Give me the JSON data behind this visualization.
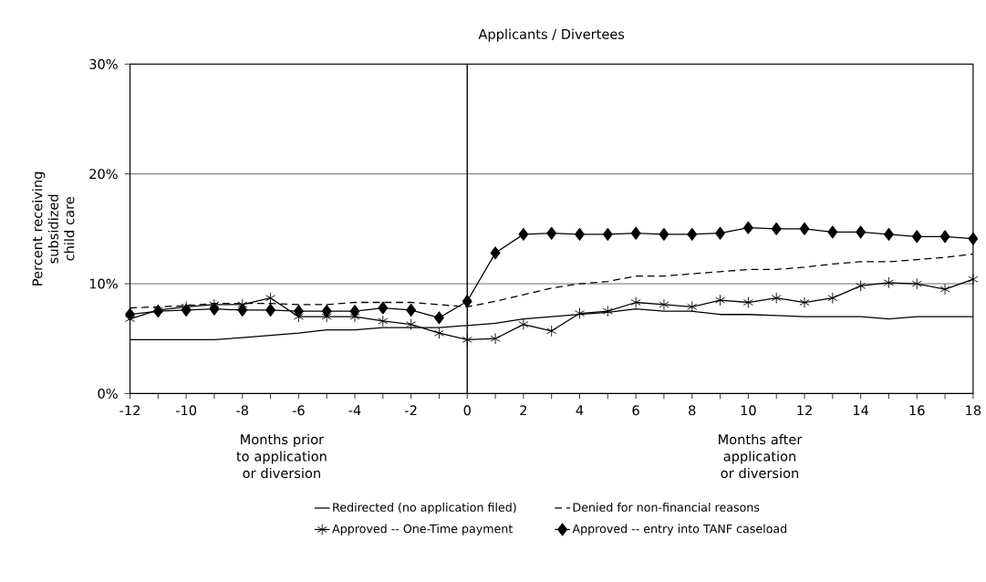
{
  "chart_data": {
    "type": "line",
    "title": "Applicants / Divertees",
    "xlabel": null,
    "ylabel": "Percent receiving subsidized child care",
    "x": [
      -12,
      -11,
      -10,
      -9,
      -8,
      -7,
      -6,
      -5,
      -4,
      -3,
      -2,
      -1,
      0,
      1,
      2,
      3,
      4,
      5,
      6,
      7,
      8,
      9,
      10,
      11,
      12,
      13,
      14,
      15,
      16,
      17,
      18
    ],
    "series": [
      {
        "name": "Redirected (no application filed)",
        "color": "#000000",
        "marker": "none",
        "line_style": "solid",
        "values": [
          4.9,
          4.9,
          4.9,
          4.9,
          5.1,
          5.3,
          5.5,
          5.8,
          5.8,
          6.0,
          6.0,
          6.0,
          6.2,
          6.4,
          6.8,
          7.0,
          7.2,
          7.4,
          7.7,
          7.5,
          7.5,
          7.2,
          7.2,
          7.1,
          7.0,
          7.0,
          7.0,
          6.8,
          7.0,
          7.0,
          7.0
        ]
      },
      {
        "name": "Denied for non-financial reasons",
        "color": "#000000",
        "marker": "none",
        "line_style": "dashed",
        "values": [
          7.8,
          7.9,
          8.0,
          8.2,
          8.2,
          8.2,
          8.1,
          8.1,
          8.3,
          8.3,
          8.3,
          8.1,
          7.9,
          8.4,
          9.0,
          9.6,
          10.0,
          10.2,
          10.7,
          10.7,
          10.9,
          11.1,
          11.3,
          11.3,
          11.5,
          11.8,
          12.0,
          12.0,
          12.2,
          12.4,
          12.7
        ]
      },
      {
        "name": "Approved -- One-Time payment",
        "color": "#000000",
        "marker": "cross",
        "line_style": "solid",
        "values": [
          6.8,
          7.6,
          7.9,
          8.1,
          8.1,
          8.7,
          7.0,
          7.0,
          7.0,
          6.6,
          6.3,
          5.5,
          4.9,
          5.0,
          6.3,
          5.7,
          7.3,
          7.5,
          8.3,
          8.1,
          7.9,
          8.5,
          8.3,
          8.7,
          8.3,
          8.7,
          9.8,
          10.1,
          10.0,
          9.5,
          10.4
        ]
      },
      {
        "name": "Approved -- entry into TANF caseload",
        "color": "#000000",
        "marker": "diamond",
        "line_style": "solid",
        "values": [
          7.2,
          7.5,
          7.6,
          7.7,
          7.6,
          7.6,
          7.5,
          7.5,
          7.5,
          7.8,
          7.6,
          6.9,
          8.4,
          12.8,
          14.5,
          14.6,
          14.5,
          14.5,
          14.6,
          14.5,
          14.5,
          14.6,
          15.1,
          15.0,
          15.0,
          14.7,
          14.7,
          14.5,
          14.3,
          14.3,
          14.1
        ]
      }
    ],
    "xlim": [
      -12,
      18
    ],
    "xticks": [
      -12,
      {
        "value": -11,
        "label": null
      },
      -10,
      {
        "value": -9,
        "label": null
      },
      -8,
      {
        "value": -7,
        "label": null
      },
      -6,
      {
        "value": -5,
        "label": null
      },
      -4,
      {
        "value": -3,
        "label": null
      },
      -2,
      {
        "value": -1,
        "label": null
      },
      0,
      {
        "value": 1,
        "label": null
      },
      2,
      {
        "value": 3,
        "label": null
      },
      4,
      {
        "value": 5,
        "label": null
      },
      6,
      {
        "value": 7,
        "label": null
      },
      8,
      {
        "value": 9,
        "label": null
      },
      10,
      {
        "value": 11,
        "label": null
      },
      12,
      {
        "value": 13,
        "label": null
      },
      14,
      {
        "value": 15,
        "label": null
      },
      16,
      {
        "value": 17,
        "label": null
      },
      18
    ],
    "ylim": [
      0,
      30
    ],
    "yticks": [
      {
        "value": 0,
        "label": "0%"
      },
      {
        "value": 10,
        "label": "10%"
      },
      {
        "value": 20,
        "label": "20%"
      },
      {
        "value": 30,
        "label": "30%"
      }
    ],
    "grid": "y",
    "legend": "bottom",
    "ref_lines": [
      {
        "axis": "x",
        "value": 0,
        "label": null
      }
    ],
    "annotations": [
      "Months prior to application or diversion",
      "Months after application or diversion"
    ]
  }
}
